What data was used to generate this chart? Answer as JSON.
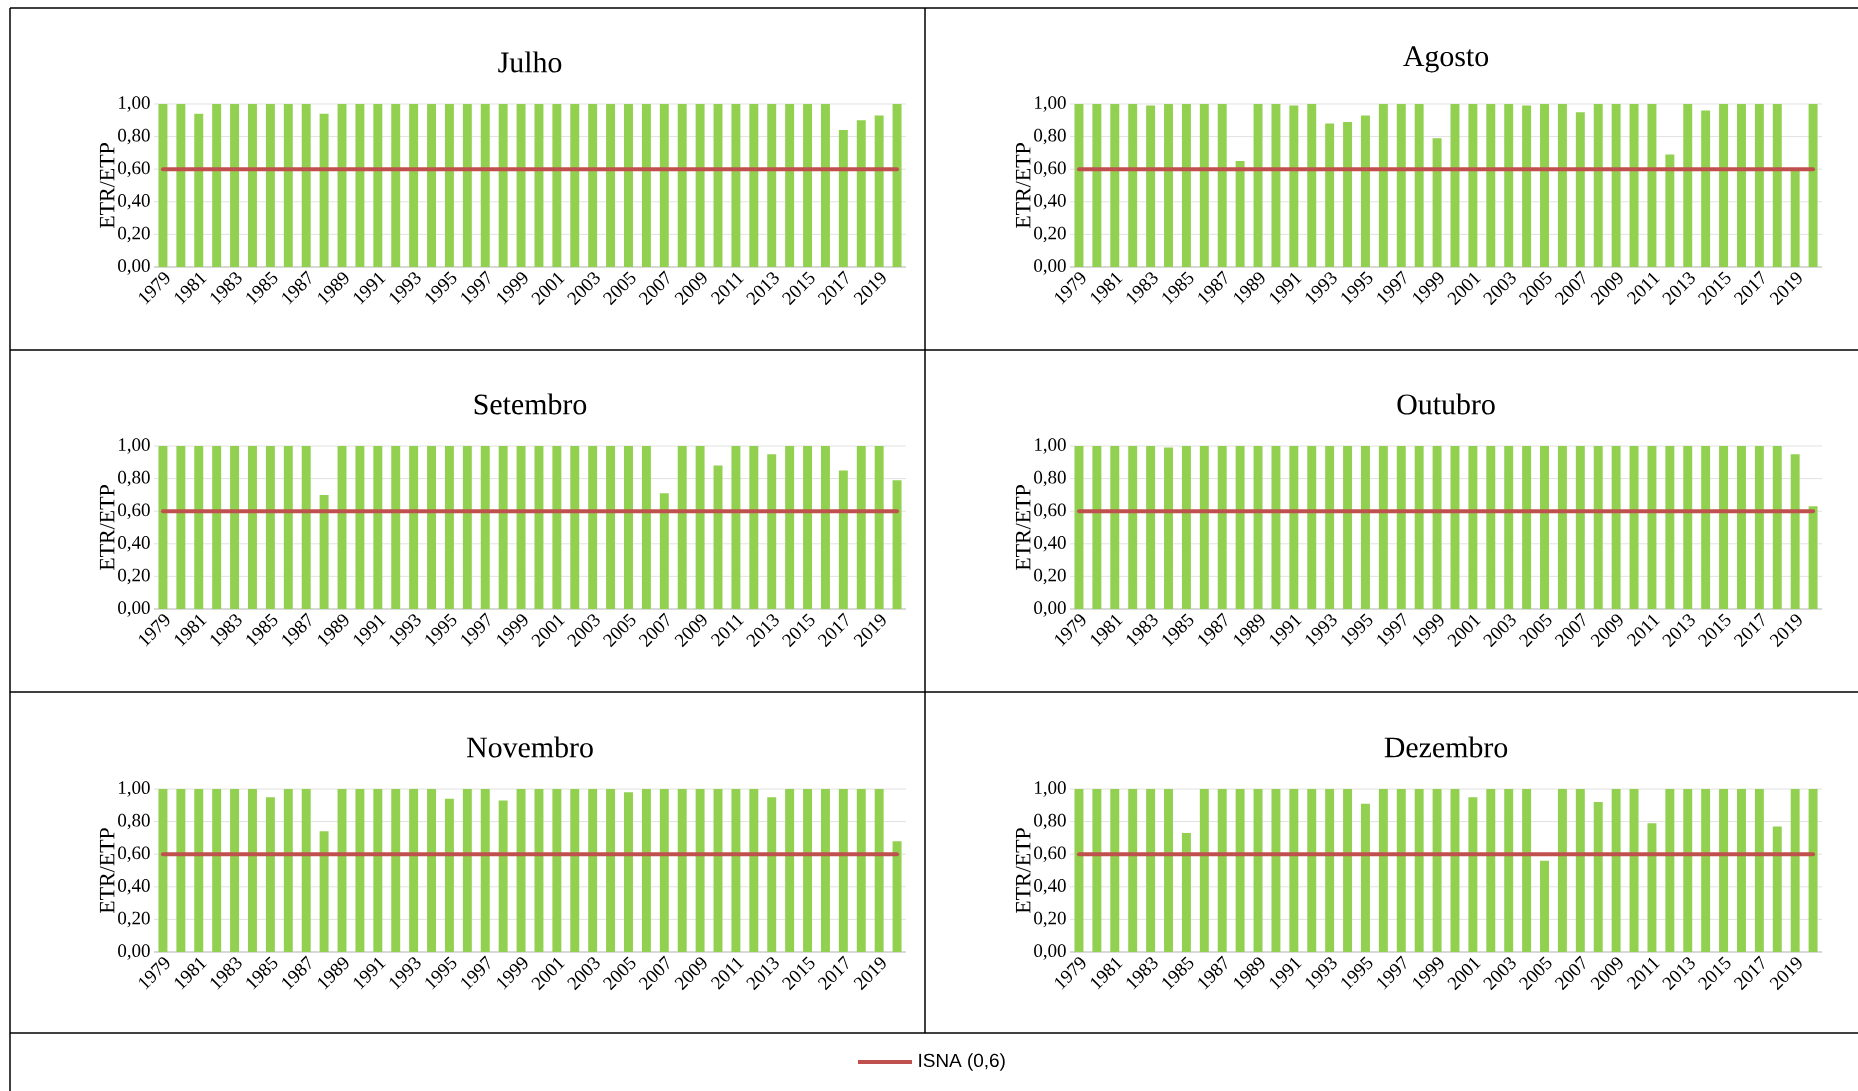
{
  "chart_data": [
    {
      "type": "bar",
      "title": "Julho",
      "ylabel": "ETR/ETP",
      "categories": [
        "1979",
        null,
        "1981",
        null,
        "1983",
        null,
        "1985",
        null,
        "1987",
        null,
        "1989",
        null,
        "1991",
        null,
        "1993",
        null,
        "1995",
        null,
        "1997",
        null,
        "1999",
        null,
        "2001",
        null,
        "2003",
        null,
        "2005",
        null,
        "2007",
        null,
        "2009",
        null,
        "2011",
        null,
        "2013",
        null,
        "2015",
        null,
        "2017",
        null,
        "2019",
        null
      ],
      "values": [
        1.0,
        1.0,
        0.94,
        1.0,
        1.0,
        1.0,
        1.0,
        1.0,
        1.0,
        0.94,
        1.0,
        1.0,
        1.0,
        1.0,
        1.0,
        1.0,
        1.0,
        1.0,
        1.0,
        1.0,
        1.0,
        1.0,
        1.0,
        1.0,
        1.0,
        1.0,
        1.0,
        1.0,
        1.0,
        1.0,
        1.0,
        1.0,
        1.0,
        1.0,
        1.0,
        1.0,
        1.0,
        1.0,
        0.84,
        0.9,
        0.93,
        1.0
      ],
      "color": "#92d050",
      "ylim": [
        0,
        1
      ],
      "yticks": [
        {
          "value": 0,
          "label": "0,00"
        },
        {
          "value": 0.2,
          "label": "0,20"
        },
        {
          "value": 0.4,
          "label": "0,40"
        },
        {
          "value": 0.6,
          "label": "0,60"
        },
        {
          "value": 0.8,
          "label": "0,80"
        },
        {
          "value": 1,
          "label": "1,00"
        }
      ],
      "grid": "y",
      "ref_lines": [
        {
          "axis": "y",
          "value": 0.6,
          "label": "ISNA (0,6)",
          "color": "#c0504d"
        }
      ],
      "legend": "bottom"
    },
    {
      "type": "bar",
      "title": "Agosto",
      "ylabel": "ETR/ETP",
      "categories": [
        "1979",
        null,
        "1981",
        null,
        "1983",
        null,
        "1985",
        null,
        "1987",
        null,
        "1989",
        null,
        "1991",
        null,
        "1993",
        null,
        "1995",
        null,
        "1997",
        null,
        "1999",
        null,
        "2001",
        null,
        "2003",
        null,
        "2005",
        null,
        "2007",
        null,
        "2009",
        null,
        "2011",
        null,
        "2013",
        null,
        "2015",
        null,
        "2017",
        null,
        "2019",
        null
      ],
      "values": [
        1.0,
        1.0,
        1.0,
        1.0,
        0.99,
        1.0,
        1.0,
        1.0,
        1.0,
        0.65,
        1.0,
        1.0,
        0.99,
        1.0,
        0.88,
        0.89,
        0.93,
        1.0,
        1.0,
        1.0,
        0.79,
        1.0,
        1.0,
        1.0,
        1.0,
        0.99,
        1.0,
        1.0,
        0.95,
        1.0,
        1.0,
        1.0,
        1.0,
        0.69,
        1.0,
        0.96,
        1.0,
        1.0,
        1.0,
        1.0,
        0.6,
        1.0
      ],
      "color": "#92d050",
      "ylim": [
        0,
        1
      ],
      "yticks": [
        {
          "value": 0,
          "label": "0,00"
        },
        {
          "value": 0.2,
          "label": "0,20"
        },
        {
          "value": 0.4,
          "label": "0,40"
        },
        {
          "value": 0.6,
          "label": "0,60"
        },
        {
          "value": 0.8,
          "label": "0,80"
        },
        {
          "value": 1,
          "label": "1,00"
        }
      ],
      "grid": "y",
      "ref_lines": [
        {
          "axis": "y",
          "value": 0.6,
          "color": "#c0504d"
        }
      ]
    },
    {
      "type": "bar",
      "title": "Setembro",
      "ylabel": "ETR/ETP",
      "categories": [
        "1979",
        null,
        "1981",
        null,
        "1983",
        null,
        "1985",
        null,
        "1987",
        null,
        "1989",
        null,
        "1991",
        null,
        "1993",
        null,
        "1995",
        null,
        "1997",
        null,
        "1999",
        null,
        "2001",
        null,
        "2003",
        null,
        "2005",
        null,
        "2007",
        null,
        "2009",
        null,
        "2011",
        null,
        "2013",
        null,
        "2015",
        null,
        "2017",
        null,
        "2019",
        null
      ],
      "values": [
        1.0,
        1.0,
        1.0,
        1.0,
        1.0,
        1.0,
        1.0,
        1.0,
        1.0,
        0.7,
        1.0,
        1.0,
        1.0,
        1.0,
        1.0,
        1.0,
        1.0,
        1.0,
        1.0,
        1.0,
        1.0,
        1.0,
        1.0,
        1.0,
        1.0,
        1.0,
        1.0,
        1.0,
        0.71,
        1.0,
        1.0,
        0.88,
        1.0,
        1.0,
        0.95,
        1.0,
        1.0,
        1.0,
        0.85,
        1.0,
        1.0,
        0.79
      ],
      "color": "#92d050",
      "ylim": [
        0,
        1
      ],
      "yticks": [
        {
          "value": 0,
          "label": "0,00"
        },
        {
          "value": 0.2,
          "label": "0,20"
        },
        {
          "value": 0.4,
          "label": "0,40"
        },
        {
          "value": 0.6,
          "label": "0,60"
        },
        {
          "value": 0.8,
          "label": "0,80"
        },
        {
          "value": 1,
          "label": "1,00"
        }
      ],
      "grid": "y",
      "ref_lines": [
        {
          "axis": "y",
          "value": 0.6,
          "color": "#c0504d"
        }
      ]
    },
    {
      "type": "bar",
      "title": "Outubro",
      "ylabel": "ETR/ETP",
      "categories": [
        "1979",
        null,
        "1981",
        null,
        "1983",
        null,
        "1985",
        null,
        "1987",
        null,
        "1989",
        null,
        "1991",
        null,
        "1993",
        null,
        "1995",
        null,
        "1997",
        null,
        "1999",
        null,
        "2001",
        null,
        "2003",
        null,
        "2005",
        null,
        "2007",
        null,
        "2009",
        null,
        "2011",
        null,
        "2013",
        null,
        "2015",
        null,
        "2017",
        null,
        "2019",
        null
      ],
      "values": [
        1.0,
        1.0,
        1.0,
        1.0,
        1.0,
        0.99,
        1.0,
        1.0,
        1.0,
        1.0,
        1.0,
        1.0,
        1.0,
        1.0,
        1.0,
        1.0,
        1.0,
        1.0,
        1.0,
        1.0,
        1.0,
        1.0,
        1.0,
        1.0,
        1.0,
        1.0,
        1.0,
        1.0,
        1.0,
        1.0,
        1.0,
        1.0,
        1.0,
        1.0,
        1.0,
        1.0,
        1.0,
        1.0,
        1.0,
        1.0,
        0.95,
        0.63
      ],
      "color": "#92d050",
      "ylim": [
        0,
        1
      ],
      "yticks": [
        {
          "value": 0,
          "label": "0,00"
        },
        {
          "value": 0.2,
          "label": "0,20"
        },
        {
          "value": 0.4,
          "label": "0,40"
        },
        {
          "value": 0.6,
          "label": "0,60"
        },
        {
          "value": 0.8,
          "label": "0,80"
        },
        {
          "value": 1,
          "label": "1,00"
        }
      ],
      "grid": "y",
      "ref_lines": [
        {
          "axis": "y",
          "value": 0.6,
          "color": "#c0504d"
        }
      ]
    },
    {
      "type": "bar",
      "title": "Novembro",
      "ylabel": "ETR/ETP",
      "categories": [
        "1979",
        null,
        "1981",
        null,
        "1983",
        null,
        "1985",
        null,
        "1987",
        null,
        "1989",
        null,
        "1991",
        null,
        "1993",
        null,
        "1995",
        null,
        "1997",
        null,
        "1999",
        null,
        "2001",
        null,
        "2003",
        null,
        "2005",
        null,
        "2007",
        null,
        "2009",
        null,
        "2011",
        null,
        "2013",
        null,
        "2015",
        null,
        "2017",
        null,
        "2019",
        null
      ],
      "values": [
        1.0,
        1.0,
        1.0,
        1.0,
        1.0,
        1.0,
        0.95,
        1.0,
        1.0,
        0.74,
        1.0,
        1.0,
        1.0,
        1.0,
        1.0,
        1.0,
        0.94,
        1.0,
        1.0,
        0.93,
        1.0,
        1.0,
        1.0,
        1.0,
        1.0,
        1.0,
        0.98,
        1.0,
        1.0,
        1.0,
        1.0,
        1.0,
        1.0,
        1.0,
        0.95,
        1.0,
        1.0,
        1.0,
        1.0,
        1.0,
        1.0,
        0.68
      ],
      "color": "#92d050",
      "ylim": [
        0,
        1
      ],
      "yticks": [
        {
          "value": 0,
          "label": "0,00"
        },
        {
          "value": 0.2,
          "label": "0,20"
        },
        {
          "value": 0.4,
          "label": "0,40"
        },
        {
          "value": 0.6,
          "label": "0,60"
        },
        {
          "value": 0.8,
          "label": "0,80"
        },
        {
          "value": 1,
          "label": "1,00"
        }
      ],
      "grid": "y",
      "ref_lines": [
        {
          "axis": "y",
          "value": 0.6,
          "color": "#c0504d"
        }
      ]
    },
    {
      "type": "bar",
      "title": "Dezembro",
      "ylabel": "ETR/ETP",
      "categories": [
        "1979",
        null,
        "1981",
        null,
        "1983",
        null,
        "1985",
        null,
        "1987",
        null,
        "1989",
        null,
        "1991",
        null,
        "1993",
        null,
        "1995",
        null,
        "1997",
        null,
        "1999",
        null,
        "2001",
        null,
        "2003",
        null,
        "2005",
        null,
        "2007",
        null,
        "2009",
        null,
        "2011",
        null,
        "2013",
        null,
        "2015",
        null,
        "2017",
        null,
        "2019",
        null
      ],
      "values": [
        1.0,
        1.0,
        1.0,
        1.0,
        1.0,
        1.0,
        0.73,
        1.0,
        1.0,
        1.0,
        1.0,
        1.0,
        1.0,
        1.0,
        1.0,
        1.0,
        0.91,
        1.0,
        1.0,
        1.0,
        1.0,
        1.0,
        0.95,
        1.0,
        1.0,
        1.0,
        0.56,
        1.0,
        1.0,
        0.92,
        1.0,
        1.0,
        0.79,
        1.0,
        1.0,
        1.0,
        1.0,
        1.0,
        1.0,
        0.77,
        1.0,
        1.0
      ],
      "color": "#92d050",
      "ylim": [
        0,
        1
      ],
      "yticks": [
        {
          "value": 0,
          "label": "0,00"
        },
        {
          "value": 0.2,
          "label": "0,20"
        },
        {
          "value": 0.4,
          "label": "0,40"
        },
        {
          "value": 0.6,
          "label": "0,60"
        },
        {
          "value": 0.8,
          "label": "0,80"
        },
        {
          "value": 1,
          "label": "1,00"
        }
      ],
      "grid": "y",
      "ref_lines": [
        {
          "axis": "y",
          "value": 0.6,
          "color": "#c0504d"
        }
      ]
    }
  ]
}
